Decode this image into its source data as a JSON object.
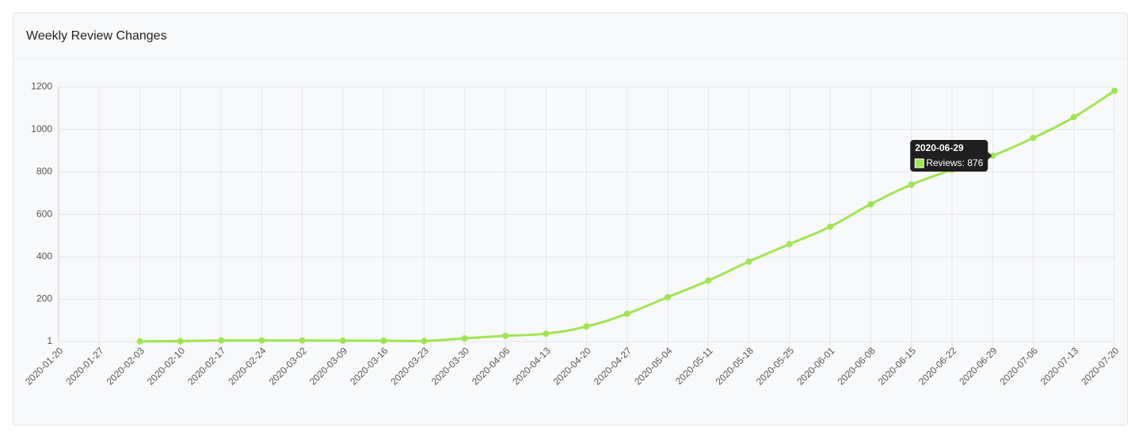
{
  "chart_data": {
    "type": "line",
    "title": "Weekly Review Changes",
    "categories": [
      "2020-01-20",
      "2020-01-27",
      "2020-02-03",
      "2020-02-10",
      "2020-02-17",
      "2020-02-24",
      "2020-03-02",
      "2020-03-09",
      "2020-03-16",
      "2020-03-23",
      "2020-03-30",
      "2020-04-06",
      "2020-04-13",
      "2020-04-20",
      "2020-04-27",
      "2020-05-04",
      "2020-05-11",
      "2020-05-18",
      "2020-05-25",
      "2020-06-01",
      "2020-06-08",
      "2020-06-15",
      "2020-06-22",
      "2020-06-29",
      "2020-07-06",
      "2020-07-13",
      "2020-07-20"
    ],
    "series": [
      {
        "name": "Reviews",
        "color": "#9ee651",
        "values": [
          null,
          null,
          2,
          3,
          6,
          6,
          6,
          5,
          5,
          4,
          16,
          28,
          38,
          72,
          132,
          210,
          288,
          378,
          460,
          542,
          648,
          740,
          810,
          876,
          960,
          1058,
          1182
        ]
      }
    ],
    "ylim": [
      1,
      1200
    ],
    "yticks": [
      1,
      200,
      400,
      600,
      800,
      1000,
      1200
    ],
    "grid": true
  }
}
